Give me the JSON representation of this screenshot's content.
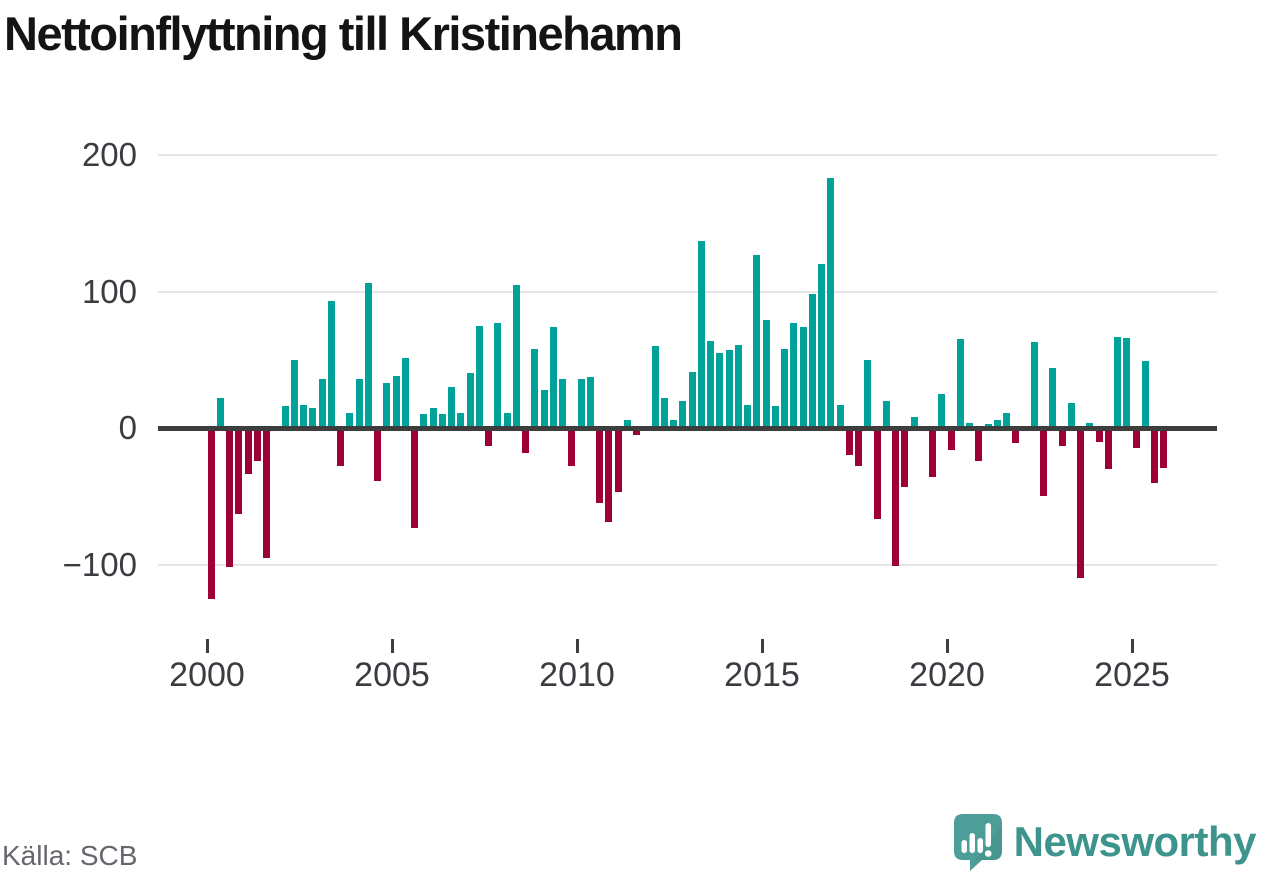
{
  "chart_data": {
    "type": "bar",
    "title": "Nettoinflyttning till Kristinehamn",
    "frequency": "quarterly",
    "x_range": "2000 Q1 – 2025 Q4",
    "y_ticks": [
      200,
      100,
      0,
      -100
    ],
    "x_tick_years": [
      2000,
      2005,
      2010,
      2015,
      2020,
      2025
    ],
    "ylim": [
      -135,
      210
    ],
    "grid": "horizontal",
    "legend": "none",
    "colors": {
      "positive": "#00a29a",
      "negative": "#9e0038"
    },
    "years": [
      {
        "year": 2000,
        "values": [
          -125,
          22,
          -102,
          -63
        ]
      },
      {
        "year": 2001,
        "values": [
          -34,
          -24,
          -95,
          0
        ]
      },
      {
        "year": 2002,
        "values": [
          16,
          50,
          17,
          15
        ]
      },
      {
        "year": 2003,
        "values": [
          36,
          93,
          -28,
          11
        ]
      },
      {
        "year": 2004,
        "values": [
          36,
          106,
          -39,
          33
        ]
      },
      {
        "year": 2005,
        "values": [
          38,
          51,
          -73,
          10
        ]
      },
      {
        "year": 2006,
        "values": [
          15,
          10,
          30,
          11
        ]
      },
      {
        "year": 2007,
        "values": [
          40,
          75,
          -13,
          77
        ]
      },
      {
        "year": 2008,
        "values": [
          11,
          105,
          -18,
          58
        ]
      },
      {
        "year": 2009,
        "values": [
          28,
          74,
          36,
          -28
        ]
      },
      {
        "year": 2010,
        "values": [
          36,
          37,
          -55,
          -69
        ]
      },
      {
        "year": 2011,
        "values": [
          -47,
          6,
          -5,
          -2
        ]
      },
      {
        "year": 2012,
        "values": [
          60,
          22,
          6,
          20
        ]
      },
      {
        "year": 2013,
        "values": [
          41,
          137,
          64,
          55
        ]
      },
      {
        "year": 2014,
        "values": [
          57,
          61,
          17,
          127
        ]
      },
      {
        "year": 2015,
        "values": [
          79,
          16,
          58,
          77
        ]
      },
      {
        "year": 2016,
        "values": [
          74,
          98,
          120,
          183
        ]
      },
      {
        "year": 2017,
        "values": [
          17,
          -20,
          -28,
          50
        ]
      },
      {
        "year": 2018,
        "values": [
          -67,
          20,
          -101,
          -43
        ]
      },
      {
        "year": 2019,
        "values": [
          8,
          0,
          -36,
          25
        ]
      },
      {
        "year": 2020,
        "values": [
          -16,
          65,
          4,
          -24
        ]
      },
      {
        "year": 2021,
        "values": [
          3,
          6,
          11,
          -11
        ]
      },
      {
        "year": 2022,
        "values": [
          0,
          63,
          -50,
          44
        ]
      },
      {
        "year": 2023,
        "values": [
          -13,
          18,
          -110,
          4
        ]
      },
      {
        "year": 2024,
        "values": [
          -10,
          -30,
          67,
          66
        ]
      },
      {
        "year": 2025,
        "values": [
          -15,
          49,
          -40,
          -29
        ]
      }
    ]
  },
  "source": {
    "label": "Källa: SCB"
  },
  "branding": {
    "name": "Newsworthy",
    "icon": "speech-bubble-bar-chart-exclamation",
    "wordmark_color": "#3c948d",
    "bubble_color": "#4d9d98"
  }
}
